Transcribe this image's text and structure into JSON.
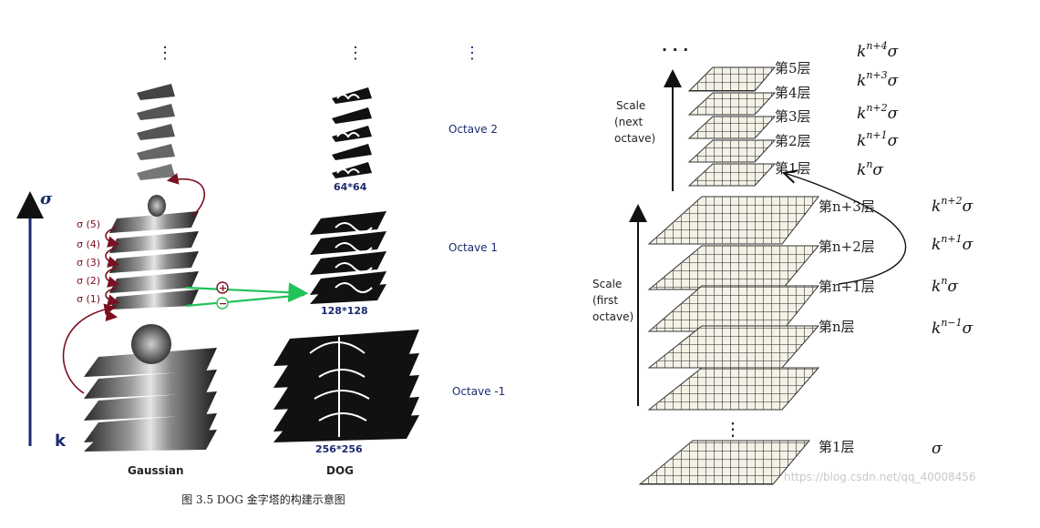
{
  "left_panel": {
    "axis_sigma_label": "σ",
    "axis_k_label": "k",
    "sigma_steps": [
      "σ (5)",
      "σ (4)",
      "σ (3)",
      "σ (2)",
      "σ (1)"
    ],
    "ellipsis": "⋮",
    "octave_labels": [
      "Octave 2",
      "Octave 1",
      "Octave -1"
    ],
    "size_labels": [
      "64*64",
      "128*128",
      "256*256"
    ],
    "column_labels": [
      "Gaussian",
      "DOG"
    ],
    "plus_sign": "+",
    "minus_sign": "−",
    "caption": "图 3.5 DOG 金字塔的构建示意图",
    "colors": {
      "blue": "#1a2b6d",
      "dark_red": "#7a1020",
      "green": "#22c25a"
    }
  },
  "right_panel": {
    "top_ellipsis": "· · ·",
    "mid_ellipsis": "⋮",
    "scale_next_octave": [
      "Scale",
      "(next",
      "octave)"
    ],
    "scale_first_octave": [
      "Scale",
      "(first",
      "octave)"
    ],
    "next_octave_layers": [
      "第5层",
      "第4层",
      "第3层",
      "第2层",
      "第1层"
    ],
    "first_octave_layers": [
      "第n+3层",
      "第n+2层",
      "第n+1层",
      "第n层"
    ],
    "bottom_layer": "第1层",
    "next_octave_scales": [
      {
        "base": "k",
        "exp": "n+4",
        "sym": "σ"
      },
      {
        "base": "k",
        "exp": "n+3",
        "sym": "σ"
      },
      {
        "base": "k",
        "exp": "n+2",
        "sym": "σ"
      },
      {
        "base": "k",
        "exp": "n+1",
        "sym": "σ"
      },
      {
        "base": "k",
        "exp": "n",
        "sym": "σ"
      }
    ],
    "first_octave_scales": [
      {
        "base": "k",
        "exp": "n+2",
        "sym": "σ"
      },
      {
        "base": "k",
        "exp": "n+1",
        "sym": "σ"
      },
      {
        "base": "k",
        "exp": "n",
        "sym": "σ"
      },
      {
        "base": "k",
        "exp": "n−1",
        "sym": "σ"
      }
    ],
    "bottom_scale": "σ",
    "watermark": "https://blog.csdn.net/qq_40008456"
  }
}
